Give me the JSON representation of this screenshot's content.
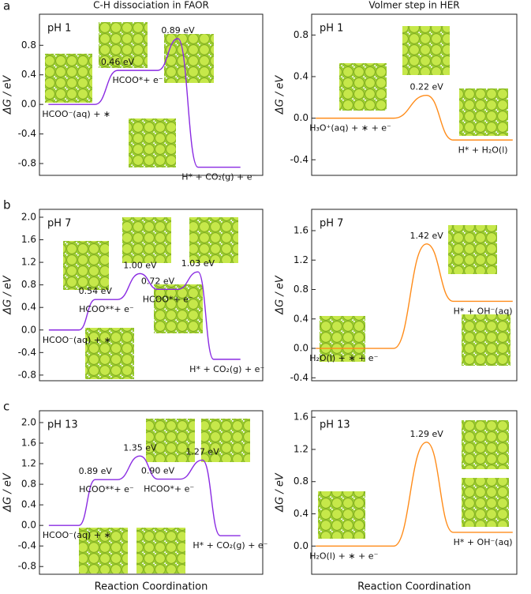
{
  "panel_labels": [
    "a",
    "b",
    "c"
  ],
  "chart_data": [
    {
      "type": "line",
      "title": "C-H dissociation in FAOR",
      "y_label": "ΔG / eV",
      "annotation": "pH 1",
      "color": "#8a2be2",
      "xlim": [
        0,
        10
      ],
      "x": [
        0.4,
        2.5,
        3.5,
        5.3,
        6.2,
        7.1,
        9.0
      ],
      "values": [
        0,
        0,
        0.46,
        0.46,
        0.89,
        -0.85,
        -0.85
      ],
      "value_labels": [
        null,
        null,
        "0.46 eV",
        null,
        "0.89 eV",
        null,
        null
      ],
      "state_labels": [
        "HCOO⁻(aq) + ∗",
        null,
        "HCOO*+ e⁻",
        null,
        null,
        "H* + CO₂(g) + e⁻",
        null
      ],
      "ylim": [
        -0.96,
        1.22
      ],
      "yticks": [
        -0.8,
        -0.4,
        {
          "value": 0,
          "label": "0.0"
        },
        0.4,
        0.8
      ]
    },
    {
      "type": "line",
      "title": "Volmer step in HER",
      "y_label": "ΔG / eV",
      "annotation": "pH 1",
      "color": "#ff8c1a",
      "xlim": [
        0,
        10
      ],
      "x": [
        0.2,
        4.0,
        5.6,
        6.9,
        9.8
      ],
      "values": [
        0,
        0,
        0.22,
        -0.21,
        -0.21
      ],
      "value_labels": [
        null,
        null,
        "0.22 eV",
        null,
        null
      ],
      "state_labels": [
        "H₃O⁺(aq) + ∗ + e⁻",
        null,
        null,
        "H* + H₂O(l)",
        null
      ],
      "ylim": [
        -0.55,
        1.0
      ],
      "yticks": [
        -0.4,
        {
          "value": 0,
          "label": "0.0"
        },
        0.4,
        0.8
      ]
    },
    {
      "type": "line",
      "y_label": "ΔG / eV",
      "annotation": "pH 7",
      "color": "#8a2be2",
      "xlim": [
        0,
        10
      ],
      "x": [
        0.42,
        1.77,
        2.5,
        3.5,
        4.5,
        5.3,
        6.2,
        7.1,
        7.8,
        9.0
      ],
      "values": [
        0,
        0,
        0.54,
        0.54,
        1.0,
        0.72,
        0.72,
        1.03,
        -0.52,
        -0.52
      ],
      "value_labels": [
        null,
        null,
        "0.54 eV",
        null,
        "1.00 eV",
        "0.72 eV",
        null,
        "1.03 eV",
        null,
        null
      ],
      "state_labels": [
        "HCOO⁻(aq) + ∗",
        null,
        "HCOO**+ e⁻",
        null,
        null,
        "HCOO*+ e⁻",
        null,
        null,
        "H* + CO₂(g) + e⁻",
        null
      ],
      "ylim": [
        -0.9,
        2.14
      ],
      "yticks": [
        -0.8,
        -0.4,
        {
          "value": 0,
          "label": "0.0"
        },
        0.4,
        0.8,
        1.2,
        1.6,
        {
          "value": 2,
          "label": "2.0"
        }
      ]
    },
    {
      "type": "line",
      "y_label": "ΔG / eV",
      "annotation": "pH 7",
      "color": "#ff8c1a",
      "xlim": [
        0,
        10
      ],
      "x": [
        0.2,
        4.0,
        5.6,
        6.9,
        9.8
      ],
      "values": [
        0,
        0,
        1.42,
        0.64,
        0.64
      ],
      "value_labels": [
        null,
        null,
        "1.42 eV",
        null,
        null
      ],
      "state_labels": [
        "H₂O(l) + ∗ + e⁻",
        null,
        null,
        "H* + OH⁻(aq)",
        null
      ],
      "ylim": [
        -0.44,
        1.89
      ],
      "yticks": [
        -0.4,
        {
          "value": 0,
          "label": "0.0"
        },
        0.4,
        0.8,
        1.2,
        1.6
      ]
    },
    {
      "type": "line",
      "y_label": "ΔG / eV",
      "x_label": "Reaction Coordination",
      "annotation": "pH 13",
      "color": "#8a2be2",
      "xlim": [
        0,
        10
      ],
      "x": [
        0.42,
        1.77,
        2.5,
        3.5,
        4.5,
        5.3,
        6.3,
        7.3,
        8.1,
        9.0
      ],
      "values": [
        0,
        0,
        0.89,
        0.89,
        1.35,
        0.9,
        0.9,
        1.27,
        -0.2,
        -0.2
      ],
      "value_labels": [
        null,
        null,
        "0.89 eV",
        null,
        "1.35 eV",
        "0.90 eV",
        null,
        "1.27 eV",
        null,
        null
      ],
      "state_labels": [
        "HCOO⁻(aq) + ∗",
        null,
        "HCOO**+ e⁻",
        null,
        null,
        "HCOO*+ e⁻",
        null,
        null,
        "H* + CO₂(g) + e⁻",
        null
      ],
      "ylim": [
        -0.95,
        2.23
      ],
      "yticks": [
        -0.8,
        -0.4,
        {
          "value": 0,
          "label": "0.0"
        },
        0.4,
        0.8,
        1.2,
        1.6,
        {
          "value": 2,
          "label": "2.0"
        }
      ]
    },
    {
      "type": "line",
      "y_label": "ΔG / eV",
      "x_label": "Reaction Coordination",
      "annotation": "pH 13",
      "color": "#ff8c1a",
      "xlim": [
        0,
        10
      ],
      "x": [
        0.2,
        4.0,
        5.6,
        6.9,
        9.8
      ],
      "values": [
        0,
        0,
        1.29,
        0.17,
        0.17
      ],
      "value_labels": [
        null,
        null,
        "1.29 eV",
        null,
        null
      ],
      "state_labels": [
        "H₂O(l) + ∗ + e⁻",
        null,
        null,
        "H* + OH⁻(aq)",
        null
      ],
      "ylim": [
        -0.35,
        1.68
      ],
      "yticks": [
        {
          "value": 0,
          "label": "0.0"
        },
        0.4,
        0.8,
        1.2,
        1.6
      ]
    }
  ]
}
